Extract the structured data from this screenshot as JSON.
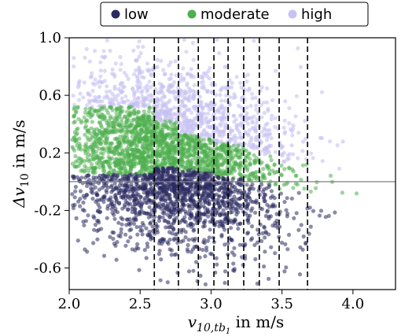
{
  "chart_data": {
    "type": "scatter",
    "xlabel_base": "v",
    "xlabel_sub": "10,tb",
    "xlabel_subsub": "1",
    "xlabel_rest": " in m/s",
    "ylabel_base": "Δv",
    "ylabel_sub": "10",
    "ylabel_rest": " in m/s",
    "xlim": [
      2.0,
      4.3
    ],
    "ylim": [
      -0.75,
      1.0
    ],
    "xticks": [
      2.0,
      2.5,
      3.0,
      3.5,
      4.0
    ],
    "xtick_labels": [
      "2.0",
      "2.5",
      "3.0",
      "3.5",
      "4.0"
    ],
    "yticks": [
      -0.6,
      -0.2,
      0.2,
      0.6,
      1.0
    ],
    "ytick_labels": [
      "-0.6",
      "-0.2",
      "0.2",
      "0.6",
      "1.0"
    ],
    "grid": false,
    "legend_position": "top-center",
    "hline_y": 0.0,
    "vlines_x": [
      2.6,
      2.77,
      2.91,
      3.02,
      3.12,
      3.23,
      3.34,
      3.48,
      3.68
    ],
    "series": [
      {
        "name": "low",
        "color": "#2b2b63"
      },
      {
        "name": "moderate",
        "color": "#4fae4f"
      },
      {
        "name": "high",
        "color": "#c6c2f2"
      }
    ],
    "bin_boundaries": {
      "x": [
        2.0,
        2.6,
        2.77,
        2.91,
        3.02,
        3.12,
        3.23,
        3.34,
        3.48,
        3.68,
        4.3
      ],
      "low_moderate": [
        0.05,
        0.1,
        0.08,
        0.06,
        0.04,
        0.02,
        0.0,
        -0.02,
        -0.05,
        -0.1
      ],
      "moderate_high": [
        0.52,
        0.42,
        0.33,
        0.3,
        0.27,
        0.25,
        0.22,
        0.18,
        0.12,
        0.06
      ]
    }
  }
}
